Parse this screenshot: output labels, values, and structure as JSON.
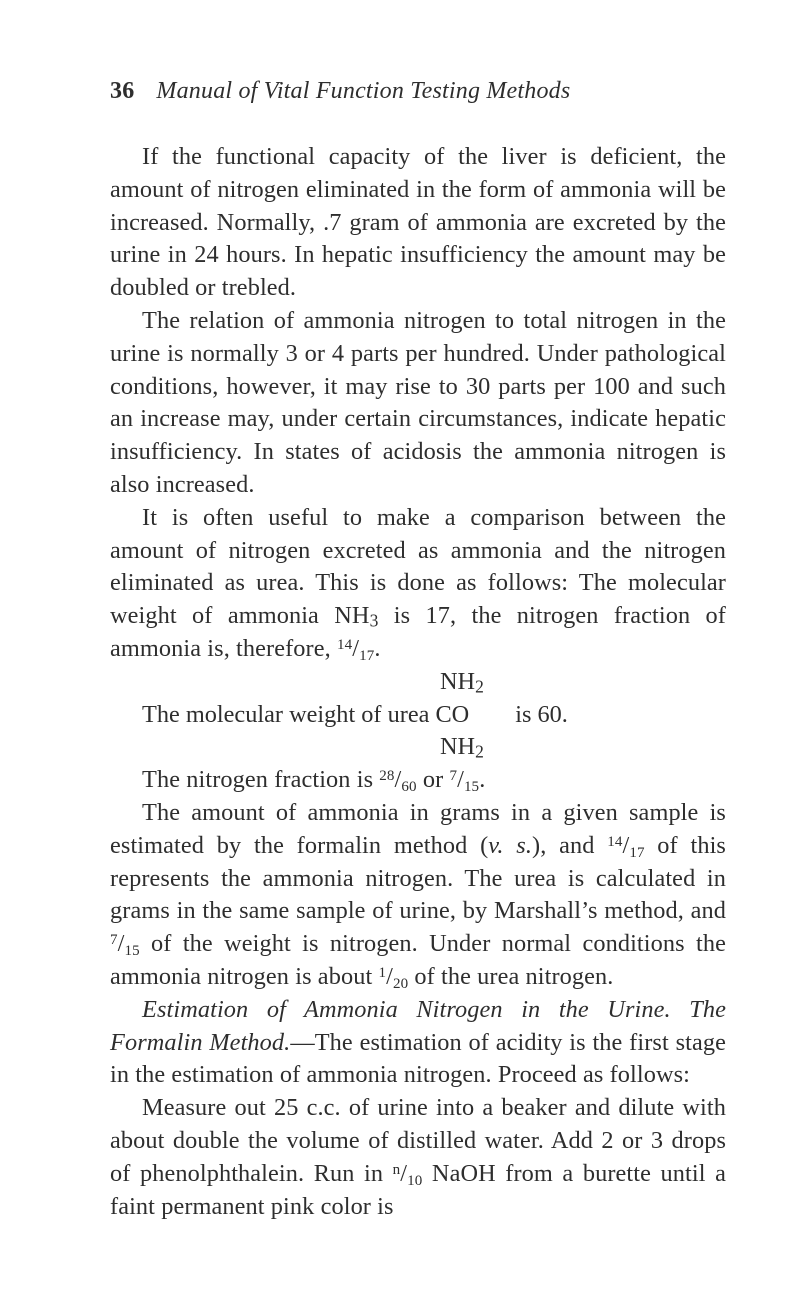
{
  "header": {
    "page_number": "36",
    "title": "Manual of Vital Function Testing Methods"
  },
  "paragraphs": {
    "p1": "If the functional capacity of the liver is deficient, the amount of nitrogen eliminated in the form of ammonia will be increased. Normally, .7 gram of ammonia are excreted by the urine in 24 hours. In hepatic insufficiency the amount may be doubled or trebled.",
    "p2a": "The relation of ammonia nitrogen to total nitrogen in the urine is normally 3 or 4 parts per hundred. Under pathological conditions, however, it may rise to 30 parts per 100 and such an increase may, under certain circumstances, indicate hepatic insufficiency. In states of acidosis the ammonia nitrogen is also increased.",
    "p3_lead": "It is often useful to make a comparison between the amount of nitrogen excreted as ammonia and the nitrogen eliminated as urea. This is done as follows: The molecular weight of ammonia ",
    "p3_nh3": "NH",
    "p3_mid": " is 17, the nitrogen fraction of ammonia is, therefore, ",
    "frac_14_17_num": "14",
    "frac_14_17_den": "17",
    "period": ".",
    "nh2_above": "NH",
    "mol_line_a": "The molecular weight of urea CO",
    "is60": "is 60.",
    "nh2_below": "NH",
    "sub2": "2",
    "sub3": "3",
    "p_nfrac_a": "The nitrogen fraction is ",
    "frac_28_60_num": "28",
    "frac_28_60_den": "60",
    "or_word": " or ",
    "frac_7_15_num": "7",
    "frac_7_15_den": "15",
    "p_amount_a": "The amount of ammonia in grams in a given sample is estimated by the formalin method (",
    "vs": "v. s.",
    "p_amount_b": "), and ",
    "frac_14_17b_num": "14",
    "frac_14_17b_den": "17",
    "p_amount_c": " of this represents the ammonia nitrogen. The urea is calculated in grams in the same sample of urine, by Marshall’s method, and ",
    "frac_7_15b_num": "7",
    "frac_7_15b_den": "15",
    "p_amount_d": " of the weight is nitrogen. Under normal conditions the ammonia nitrogen is about ",
    "frac_1_20_num": "1",
    "frac_1_20_den": "20",
    "p_amount_e": " of the urea nitrogen.",
    "p_est_title": "Estimation of Ammonia Nitrogen in the Urine. The Formalin Method.",
    "p_est_rest": "—The estimation of acidity is the first stage in the estimation of ammonia nitrogen. Proceed as follows:",
    "p_meas_a": "Measure out 25 c.c. of urine into a beaker and dilute with about double the volume of distilled water. Add 2 or 3 drops of phenolphthalein. Run in ",
    "frac_n_10_num": "n",
    "frac_n_10_den": "10",
    "p_meas_b": " NaOH from a burette until a faint permanent pink color is"
  }
}
